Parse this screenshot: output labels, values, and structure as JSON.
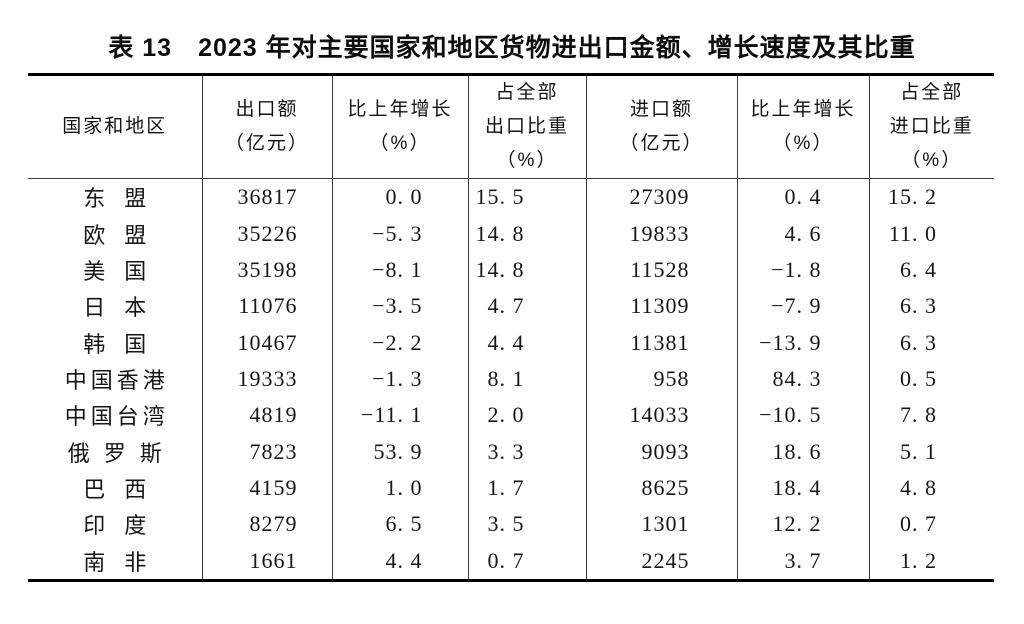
{
  "page": {
    "title": "表 13　2023 年对主要国家和地区货物进出口金额、增长速度及其比重"
  },
  "table": {
    "headers": [
      {
        "id": "region",
        "lines": [
          "国家和地区"
        ]
      },
      {
        "id": "export-amount",
        "lines": [
          "出口额",
          "（亿元）"
        ]
      },
      {
        "id": "export-growth",
        "lines": [
          "比上年增长",
          "（%）"
        ]
      },
      {
        "id": "export-share",
        "lines": [
          "占全部",
          "出口比重",
          "（%）"
        ]
      },
      {
        "id": "import-amount",
        "lines": [
          "进口额",
          "（亿元）"
        ]
      },
      {
        "id": "import-growth",
        "lines": [
          "比上年增长",
          "（%）"
        ]
      },
      {
        "id": "import-share",
        "lines": [
          "占全部",
          "进口比重",
          "（%）"
        ]
      }
    ],
    "rows": [
      [
        "东盟",
        "36817",
        "0. 0",
        "15. 5",
        "27309",
        "0. 4",
        "15. 2"
      ],
      [
        "欧盟",
        "35226",
        "−5. 3",
        "14. 8",
        "19833",
        "4. 6",
        "11. 0"
      ],
      [
        "美国",
        "35198",
        "−8. 1",
        "14. 8",
        "11528",
        "−1. 8",
        "6. 4"
      ],
      [
        "日本",
        "11076",
        "−3. 5",
        "4. 7",
        "11309",
        "−7. 9",
        "6. 3"
      ],
      [
        "韩国",
        "10467",
        "−2. 2",
        "4. 4",
        "11381",
        "−13. 9",
        "6. 3"
      ],
      [
        "中国香港",
        "19333",
        "−1. 3",
        "8. 1",
        "958",
        "84. 3",
        "0. 5"
      ],
      [
        "中国台湾",
        "4819",
        "−11. 1",
        "2. 0",
        "14033",
        "−10. 5",
        "7. 8"
      ],
      [
        "俄罗斯",
        "7823",
        "53. 9",
        "3. 3",
        "9093",
        "18. 6",
        "5. 1"
      ],
      [
        "巴西",
        "4159",
        "1. 0",
        "1. 7",
        "8625",
        "18. 4",
        "4. 8"
      ],
      [
        "印度",
        "8279",
        "6. 5",
        "3. 5",
        "1301",
        "12. 2",
        "0. 7"
      ],
      [
        "南非",
        "1661",
        "4. 4",
        "0. 7",
        "2245",
        "3. 7",
        "1. 2"
      ]
    ]
  },
  "colors": {
    "background": "#ffffff",
    "heavy_border": "#000000",
    "light_border": "#3d3d3d",
    "text": "#161616"
  }
}
